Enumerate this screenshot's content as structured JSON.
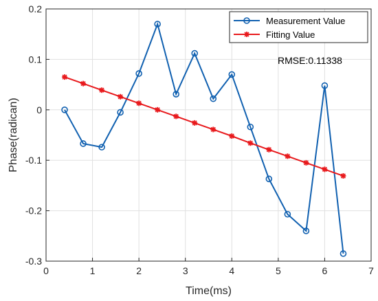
{
  "chart_data": {
    "type": "line",
    "title": "",
    "xlabel": "Time(ms)",
    "ylabel": "Phase(radican)",
    "xlim": [
      0,
      7
    ],
    "ylim": [
      -0.3,
      0.2
    ],
    "xticks": [
      "0",
      "1",
      "2",
      "3",
      "4",
      "5",
      "6",
      "7"
    ],
    "yticks": [
      "-0.3",
      "-0.2",
      "-0.1",
      "0",
      "0.1",
      "0.2"
    ],
    "grid": true,
    "legend_position": "top-right",
    "annotation": "RMSE:0.11338",
    "series": [
      {
        "name": "Measurement Value",
        "color": "#1060b0",
        "marker": "circle",
        "x": [
          0.4,
          0.8,
          1.2,
          1.6,
          2.0,
          2.4,
          2.8,
          3.2,
          3.6,
          4.0,
          4.4,
          4.8,
          5.2,
          5.6,
          6.0,
          6.4
        ],
        "y": [
          0.0,
          -0.067,
          -0.074,
          -0.005,
          0.072,
          0.17,
          0.031,
          0.112,
          0.022,
          0.07,
          -0.034,
          -0.137,
          -0.207,
          -0.24,
          0.048,
          -0.285
        ]
      },
      {
        "name": "Fitting Value",
        "color": "#e8191c",
        "marker": "star",
        "x": [
          0.4,
          0.8,
          1.2,
          1.6,
          2.0,
          2.4,
          2.8,
          3.2,
          3.6,
          4.0,
          4.4,
          4.8,
          5.2,
          5.6,
          6.0,
          6.4
        ],
        "y": [
          0.065,
          0.052,
          0.039,
          0.026,
          0.013,
          0.0,
          -0.013,
          -0.026,
          -0.039,
          -0.052,
          -0.066,
          -0.079,
          -0.092,
          -0.105,
          -0.118,
          -0.131
        ]
      }
    ]
  }
}
